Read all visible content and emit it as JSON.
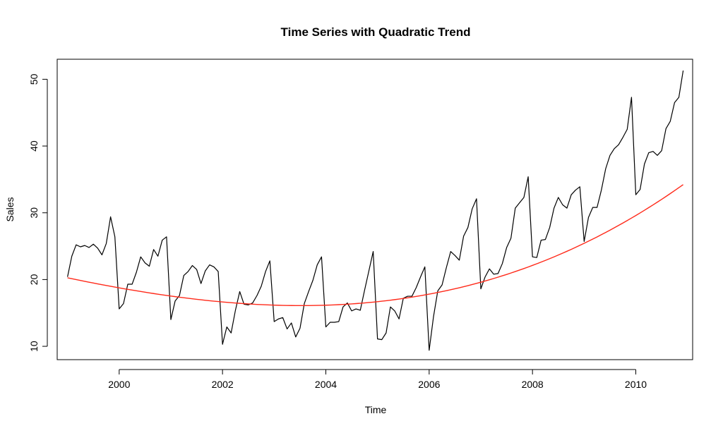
{
  "chart_data": {
    "type": "line",
    "title": "Time Series with Quadratic Trend",
    "xlabel": "Time",
    "ylabel": "Sales",
    "xlim": [
      1998.8,
      2011.1
    ],
    "ylim": [
      8,
      53
    ],
    "x_ticks": [
      2000,
      2002,
      2004,
      2006,
      2008,
      2010
    ],
    "y_ticks": [
      10,
      20,
      30,
      40,
      50
    ],
    "grid": false,
    "legend": "none",
    "start": 1999.0,
    "frequency": 12,
    "series": [
      {
        "color": "#000000",
        "values": [
          20.4,
          23.5,
          25.2,
          24.9,
          25.1,
          24.8,
          25.3,
          24.7,
          23.7,
          25.4,
          29.4,
          26.4,
          15.6,
          16.4,
          19.3,
          19.3,
          21.1,
          23.4,
          22.5,
          22.0,
          24.5,
          23.5,
          25.9,
          26.4,
          14.0,
          16.8,
          17.6,
          20.6,
          21.2,
          22.1,
          21.5,
          19.4,
          21.3,
          22.2,
          21.9,
          21.2,
          10.3,
          12.9,
          12.0,
          15.4,
          18.2,
          16.3,
          16.2,
          16.5,
          17.6,
          19.0,
          21.2,
          22.8,
          13.7,
          14.1,
          14.3,
          12.6,
          13.5,
          11.4,
          12.7,
          16.4,
          18.2,
          19.9,
          22.2,
          23.4,
          12.9,
          13.6,
          13.6,
          13.7,
          15.9,
          16.5,
          15.3,
          15.6,
          15.4,
          18.4,
          21.3,
          24.2,
          11.1,
          11.0,
          12.0,
          15.9,
          15.3,
          14.1,
          17.2,
          17.5,
          17.5,
          18.8,
          20.4,
          21.9,
          9.4,
          14.4,
          18.3,
          19.2,
          21.8,
          24.2,
          23.6,
          22.9,
          26.5,
          27.8,
          30.6,
          32.1,
          18.6,
          20.4,
          21.6,
          20.8,
          20.9,
          22.4,
          24.8,
          26.2,
          30.7,
          31.5,
          32.3,
          35.4,
          23.4,
          23.3,
          25.9,
          26.0,
          27.8,
          30.7,
          32.3,
          31.2,
          30.7,
          32.7,
          33.4,
          33.9,
          25.7,
          29.3,
          30.8,
          30.8,
          33.4,
          36.6,
          38.6,
          39.6,
          40.2,
          41.3,
          42.5,
          47.3,
          32.7,
          33.5,
          37.3,
          39.0,
          39.2,
          38.6,
          39.3,
          42.6,
          43.7,
          46.5,
          47.3,
          51.3
        ]
      },
      {
        "color": "#ff2a1a",
        "trend_coefficients": [
          16.1,
          0.252,
          0.0107
        ],
        "trend_vertex_time": 2003.52
      }
    ]
  }
}
